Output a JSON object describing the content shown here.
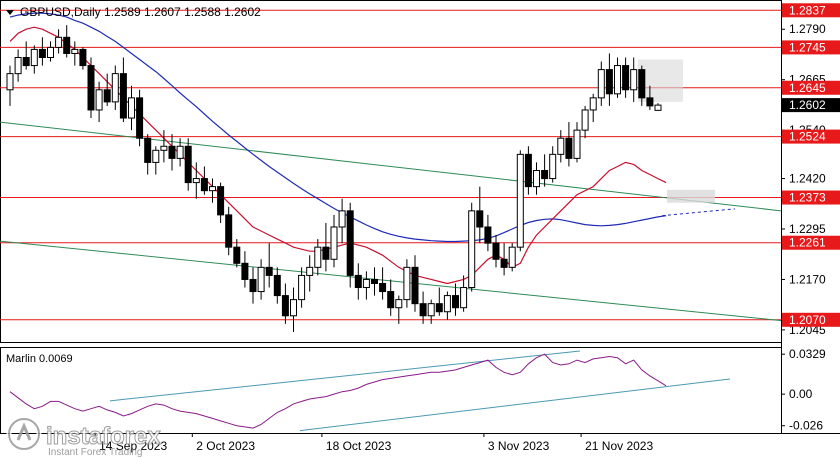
{
  "header": {
    "symbol_line": "GBPUSD,Daily  1.2589 1.2607 1.2588 1.2602"
  },
  "price_axis": {
    "ticks": [
      "1.2790",
      "1.2665",
      "1.2540",
      "1.2420",
      "1.2295",
      "1.2170",
      "1.2045"
    ],
    "range": [
      1.2015,
      1.286
    ]
  },
  "levels": [
    {
      "value": 1.2837,
      "label": "1.2837"
    },
    {
      "value": 1.2745,
      "label": "1.2745"
    },
    {
      "value": 1.2645,
      "label": "1.2645"
    },
    {
      "value": 1.2524,
      "label": "1.2524"
    },
    {
      "value": 1.2373,
      "label": "1.2373"
    },
    {
      "value": 1.2261,
      "label": "1.2261"
    },
    {
      "value": 1.207,
      "label": "1.2070"
    }
  ],
  "current_price": {
    "value": 1.2602,
    "label": "1.2602"
  },
  "time_axis": {
    "labels": [
      "14 Sep 2023",
      "2 Oct 2023",
      "18 Oct 2023",
      "3 Nov 2023",
      "21 Nov 2023"
    ]
  },
  "indicator": {
    "name_line": "Marlin 0.0069",
    "ticks": [
      "0.0329",
      "0.00",
      "-0.026"
    ],
    "range": [
      -0.032,
      0.038
    ]
  },
  "watermark": {
    "brand": "instaforex",
    "tagline": "Instant Forex Trading"
  },
  "colors": {
    "level_line": "#e8191a",
    "level_label_bg": "#e8191a",
    "ma_red": "#c8102e",
    "ma_blue": "#1f2bb5",
    "trend_green": "#2e8b57",
    "oscillator": "#8b1a8b",
    "osc_channel": "#4a9ab3",
    "candle": "#000000"
  },
  "chart_data": {
    "type": "candlestick",
    "symbol": "GBPUSD",
    "timeframe": "Daily",
    "ohlc": [
      [
        1.264,
        1.27,
        1.26,
        1.268
      ],
      [
        1.268,
        1.274,
        1.266,
        1.272
      ],
      [
        1.272,
        1.276,
        1.269,
        1.27
      ],
      [
        1.27,
        1.275,
        1.268,
        1.274
      ],
      [
        1.274,
        1.277,
        1.27,
        1.272
      ],
      [
        1.272,
        1.276,
        1.271,
        1.2745
      ],
      [
        1.2745,
        1.279,
        1.273,
        1.277
      ],
      [
        1.277,
        1.28,
        1.272,
        1.273
      ],
      [
        1.273,
        1.276,
        1.27,
        1.274
      ],
      [
        1.274,
        1.2745,
        1.269,
        1.27
      ],
      [
        1.27,
        1.272,
        1.257,
        1.259
      ],
      [
        1.259,
        1.266,
        1.256,
        1.264
      ],
      [
        1.264,
        1.268,
        1.26,
        1.261
      ],
      [
        1.261,
        1.27,
        1.259,
        1.268
      ],
      [
        1.268,
        1.272,
        1.256,
        1.257
      ],
      [
        1.257,
        1.265,
        1.254,
        1.262
      ],
      [
        1.262,
        1.264,
        1.25,
        1.252
      ],
      [
        1.252,
        1.253,
        1.243,
        1.246
      ],
      [
        1.246,
        1.25,
        1.243,
        1.249
      ],
      [
        1.249,
        1.254,
        1.246,
        1.25
      ],
      [
        1.25,
        1.253,
        1.244,
        1.247
      ],
      [
        1.247,
        1.252,
        1.245,
        1.25
      ],
      [
        1.25,
        1.252,
        1.239,
        1.241
      ],
      [
        1.241,
        1.246,
        1.237,
        1.242
      ],
      [
        1.242,
        1.245,
        1.238,
        1.239
      ],
      [
        1.239,
        1.242,
        1.236,
        1.24
      ],
      [
        1.24,
        1.241,
        1.231,
        1.233
      ],
      [
        1.233,
        1.235,
        1.223,
        1.225
      ],
      [
        1.225,
        1.227,
        1.22,
        1.221
      ],
      [
        1.221,
        1.224,
        1.215,
        1.217
      ],
      [
        1.217,
        1.22,
        1.211,
        1.214
      ],
      [
        1.214,
        1.222,
        1.212,
        1.22
      ],
      [
        1.22,
        1.226,
        1.215,
        1.218
      ],
      [
        1.218,
        1.22,
        1.211,
        1.213
      ],
      [
        1.213,
        1.216,
        1.206,
        1.208
      ],
      [
        1.208,
        1.215,
        1.204,
        1.212
      ],
      [
        1.212,
        1.22,
        1.21,
        1.218
      ],
      [
        1.218,
        1.223,
        1.214,
        1.22
      ],
      [
        1.22,
        1.227,
        1.218,
        1.225
      ],
      [
        1.225,
        1.231,
        1.219,
        1.222
      ],
      [
        1.222,
        1.233,
        1.22,
        1.23
      ],
      [
        1.23,
        1.237,
        1.226,
        1.234
      ],
      [
        1.234,
        1.236,
        1.215,
        1.218
      ],
      [
        1.218,
        1.221,
        1.212,
        1.215
      ],
      [
        1.215,
        1.219,
        1.212,
        1.217
      ],
      [
        1.217,
        1.22,
        1.213,
        1.216
      ],
      [
        1.216,
        1.22,
        1.212,
        1.214
      ],
      [
        1.214,
        1.217,
        1.208,
        1.21
      ],
      [
        1.21,
        1.213,
        1.206,
        1.212
      ],
      [
        1.212,
        1.222,
        1.21,
        1.22
      ],
      [
        1.22,
        1.223,
        1.209,
        1.211
      ],
      [
        1.211,
        1.214,
        1.206,
        1.208
      ],
      [
        1.208,
        1.212,
        1.206,
        1.211
      ],
      [
        1.211,
        1.215,
        1.208,
        1.209
      ],
      [
        1.209,
        1.214,
        1.207,
        1.213
      ],
      [
        1.213,
        1.216,
        1.208,
        1.21
      ],
      [
        1.21,
        1.218,
        1.209,
        1.215
      ],
      [
        1.215,
        1.236,
        1.214,
        1.234
      ],
      [
        1.234,
        1.24,
        1.226,
        1.23
      ],
      [
        1.23,
        1.233,
        1.224,
        1.226
      ],
      [
        1.226,
        1.228,
        1.22,
        1.222
      ],
      [
        1.222,
        1.226,
        1.218,
        1.22
      ],
      [
        1.22,
        1.226,
        1.219,
        1.225
      ],
      [
        1.225,
        1.249,
        1.224,
        1.248
      ],
      [
        1.248,
        1.25,
        1.238,
        1.24
      ],
      [
        1.24,
        1.246,
        1.238,
        1.244
      ],
      [
        1.244,
        1.248,
        1.24,
        1.242
      ],
      [
        1.242,
        1.25,
        1.241,
        1.248
      ],
      [
        1.248,
        1.254,
        1.246,
        1.252
      ],
      [
        1.252,
        1.256,
        1.245,
        1.247
      ],
      [
        1.247,
        1.256,
        1.246,
        1.254
      ],
      [
        1.254,
        1.26,
        1.252,
        1.259
      ],
      [
        1.259,
        1.263,
        1.256,
        1.262
      ],
      [
        1.262,
        1.271,
        1.26,
        1.269
      ],
      [
        1.269,
        1.273,
        1.26,
        1.263
      ],
      [
        1.263,
        1.272,
        1.262,
        1.27
      ],
      [
        1.27,
        1.272,
        1.262,
        1.264
      ],
      [
        1.264,
        1.272,
        1.261,
        1.269
      ],
      [
        1.269,
        1.27,
        1.26,
        1.262
      ],
      [
        1.262,
        1.265,
        1.259,
        1.26
      ],
      [
        1.2589,
        1.2607,
        1.2588,
        1.2602
      ]
    ],
    "ma_red_path": [
      1.276,
      1.278,
      1.279,
      1.2795,
      1.279,
      1.278,
      1.277,
      1.2755,
      1.274,
      1.272,
      1.27,
      1.268,
      1.266,
      1.264,
      1.262,
      1.26,
      1.258,
      1.256,
      1.254,
      1.252,
      1.25,
      1.248,
      1.246,
      1.244,
      1.242,
      1.24,
      1.238,
      1.236,
      1.234,
      1.232,
      1.23,
      1.229,
      1.228,
      1.227,
      1.226,
      1.225,
      1.2245,
      1.224,
      1.224,
      1.2245,
      1.225,
      1.2255,
      1.226,
      1.2255,
      1.225,
      1.224,
      1.223,
      1.2215,
      1.22,
      1.219,
      1.218,
      1.2175,
      1.217,
      1.2165,
      1.216,
      1.2165,
      1.217,
      1.218,
      1.22,
      1.222,
      1.223,
      1.222,
      1.22,
      1.221,
      1.225,
      1.228,
      1.23,
      1.232,
      1.234,
      1.236,
      1.238,
      1.239,
      1.24,
      1.242,
      1.244,
      1.245,
      1.246,
      1.2455,
      1.244,
      1.243,
      1.242,
      1.241
    ],
    "ma_blue_path": [
      1.282,
      1.2825,
      1.2828,
      1.283,
      1.283,
      1.2828,
      1.2825,
      1.282,
      1.2812,
      1.2805,
      1.2795,
      1.2785,
      1.2772,
      1.276,
      1.2745,
      1.273,
      1.2715,
      1.27,
      1.2685,
      1.2668,
      1.265,
      1.2632,
      1.2615,
      1.2598,
      1.258,
      1.2562,
      1.2545,
      1.2528,
      1.2512,
      1.2496,
      1.248,
      1.2465,
      1.245,
      1.2436,
      1.2422,
      1.2408,
      1.2395,
      1.2382,
      1.237,
      1.2358,
      1.2346,
      1.2335,
      1.2325,
      1.2315,
      1.2305,
      1.2296,
      1.2288,
      1.2282,
      1.2277,
      1.2273,
      1.227,
      1.2268,
      1.2266,
      1.2265,
      1.2264,
      1.2264,
      1.2265,
      1.2266,
      1.2268,
      1.2272,
      1.2278,
      1.2286,
      1.2295,
      1.2304,
      1.2311,
      1.2316,
      1.2319,
      1.232,
      1.2318,
      1.2314,
      1.231,
      1.2306,
      1.2304,
      1.2303,
      1.2304,
      1.2306,
      1.2309,
      1.2313,
      1.2317,
      1.2321,
      1.2325,
      1.2328
    ],
    "osc_values": [
      0.002,
      -0.003,
      -0.008,
      -0.012,
      -0.01,
      -0.006,
      -0.006,
      -0.009,
      -0.012,
      -0.014,
      -0.012,
      -0.01,
      -0.013,
      -0.015,
      -0.018,
      -0.016,
      -0.013,
      -0.01,
      -0.008,
      -0.009,
      -0.012,
      -0.014,
      -0.015,
      -0.016,
      -0.018,
      -0.02,
      -0.022,
      -0.024,
      -0.026,
      -0.027,
      -0.028,
      -0.025,
      -0.02,
      -0.015,
      -0.012,
      -0.008,
      -0.006,
      -0.004,
      -0.003,
      -0.002,
      0.0,
      0.002,
      0.003,
      0.005,
      0.008,
      0.01,
      0.012,
      0.013,
      0.014,
      0.015,
      0.016,
      0.017,
      0.018,
      0.018,
      0.019,
      0.02,
      0.022,
      0.024,
      0.026,
      0.028,
      0.022,
      0.018,
      0.016,
      0.018,
      0.025,
      0.03,
      0.033,
      0.026,
      0.024,
      0.025,
      0.028,
      0.026,
      0.029,
      0.03,
      0.031,
      0.03,
      0.025,
      0.028,
      0.02,
      0.015,
      0.011,
      0.0069
    ]
  }
}
